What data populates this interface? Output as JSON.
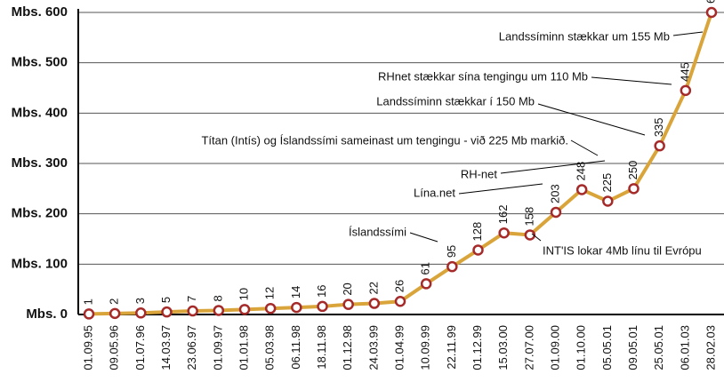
{
  "chart_data": {
    "type": "line",
    "categories": [
      "01.09.95",
      "09.05.96",
      "01.07.96",
      "14.03.97",
      "23.06.97",
      "01.09.97",
      "01.01.98",
      "05.03.98",
      "06.11.98",
      "18.11.98",
      "01.12.98",
      "24.03.99",
      "01.04.99",
      "10.09.99",
      "22.11.99",
      "01.12.99",
      "15.03.00",
      "27.07.00",
      "01.09.00",
      "01.10.00",
      "05.05.01",
      "09.05.01",
      "25.05.01",
      "06.01.03",
      "28.02.03"
    ],
    "values": [
      1,
      2,
      3,
      5,
      7,
      8,
      10,
      12,
      14,
      16,
      20,
      22,
      26,
      61,
      95,
      128,
      162,
      158,
      203,
      248,
      225,
      250,
      335,
      445,
      600
    ],
    "color": "#d9a53a",
    "marker_color": "#a52a2a",
    "ylim": [
      0,
      600
    ],
    "yticks": [
      {
        "value": 0,
        "label": "Mbs. 0"
      },
      {
        "value": 100,
        "label": "Mbs. 100"
      },
      {
        "value": 200,
        "label": "Mbs. 200"
      },
      {
        "value": 300,
        "label": "Mbs. 300"
      },
      {
        "value": 400,
        "label": "Mbs. 400"
      },
      {
        "value": 500,
        "label": "Mbs. 500"
      },
      {
        "value": 600,
        "label": "Mbs. 600"
      }
    ],
    "grid": true,
    "annotations": [
      "Landssíminn stækkar um 155 Mb",
      "RHnet stækkar sína tengingu um 110 Mb",
      "Landssíminn stækkar í 150 Mb",
      "Títan (Intís) og Íslandssími sameinast um tengingu - við 225 Mb markið.",
      "RH-net",
      "Lína.net",
      "Íslandssími",
      "INT'IS lokar 4Mb línu til Evrópu"
    ]
  }
}
